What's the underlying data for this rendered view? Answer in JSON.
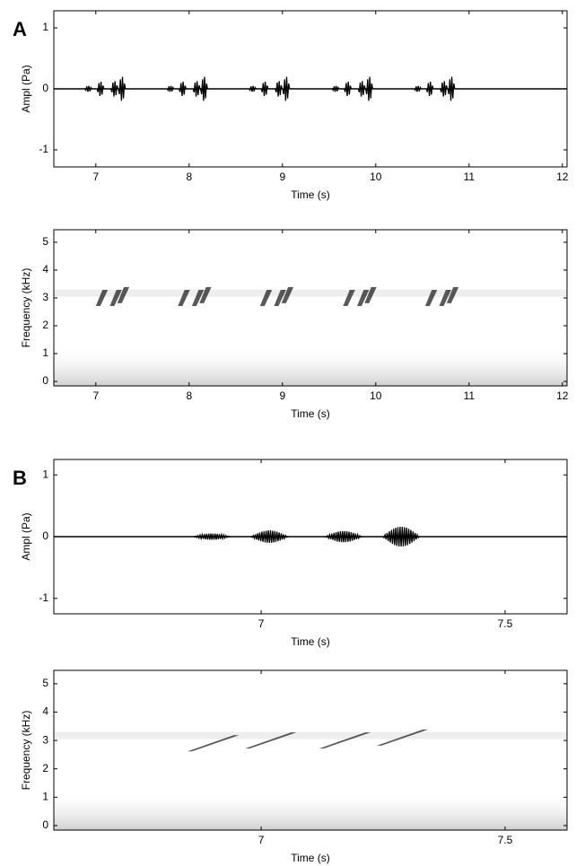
{
  "chart_data": [
    {
      "type": "waveform",
      "panel_label": "A",
      "xlabel": "Time (s)",
      "ylabel": "Ampl (Pa)",
      "xlim": [
        6.55,
        12.05
      ],
      "ylim": [
        -1.28,
        1.28
      ],
      "xticks": [
        7,
        8,
        9,
        10,
        11,
        12
      ],
      "yticks": [
        -1,
        0,
        1
      ],
      "color": "#000000",
      "x": [
        6.92,
        7.05,
        7.2,
        7.28,
        7.8,
        7.93,
        8.08,
        8.16,
        8.68,
        8.81,
        8.96,
        9.04,
        9.57,
        9.7,
        9.85,
        9.93,
        10.45,
        10.58,
        10.73,
        10.81
      ],
      "values": [
        0.05,
        0.12,
        0.13,
        0.2,
        0.05,
        0.12,
        0.13,
        0.2,
        0.05,
        0.12,
        0.13,
        0.2,
        0.05,
        0.12,
        0.13,
        0.2,
        0.05,
        0.12,
        0.13,
        0.2
      ]
    },
    {
      "type": "spectrogram",
      "xlabel": "Time (s)",
      "ylabel": "Frequency (kHz)",
      "xlim": [
        6.55,
        12.05
      ],
      "ylim": [
        -0.16,
        5.45
      ],
      "xticks": [
        7,
        8,
        9,
        10,
        11,
        12
      ],
      "yticks": [
        0,
        1,
        2,
        3,
        4,
        5
      ],
      "color": "#222222",
      "x": [
        7.05,
        7.2,
        7.28,
        7.93,
        8.08,
        8.16,
        8.81,
        8.96,
        9.04,
        9.7,
        9.85,
        9.93,
        10.58,
        10.73,
        10.81
      ],
      "values": [
        3.0,
        3.0,
        3.1,
        3.0,
        3.0,
        3.1,
        3.0,
        3.0,
        3.1,
        3.0,
        3.0,
        3.1,
        3.0,
        3.0,
        3.1
      ]
    },
    {
      "type": "waveform",
      "panel_label": "B",
      "xlabel": "Time (s)",
      "ylabel": "Ampl (Pa)",
      "xlim": [
        6.575,
        7.627
      ],
      "ylim": [
        -1.25,
        1.25
      ],
      "xticks": [
        7,
        7.5
      ],
      "yticks": [
        -1,
        0,
        1
      ],
      "color": "#000000",
      "x": [
        6.899,
        7.017,
        7.169,
        7.287
      ],
      "values": [
        0.05,
        0.1,
        0.09,
        0.16
      ]
    },
    {
      "type": "spectrogram",
      "xlabel": "Time (s)",
      "ylabel": "Frequency (kHz)",
      "xlim": [
        6.575,
        7.627
      ],
      "ylim": [
        -0.16,
        5.47
      ],
      "xticks": [
        7,
        7.5
      ],
      "yticks": [
        0,
        1,
        2,
        3,
        4,
        5
      ],
      "color": "#222222",
      "x": [
        6.899,
        7.017,
        7.169,
        7.287
      ],
      "values": [
        2.9,
        3.0,
        3.0,
        3.1
      ]
    }
  ]
}
